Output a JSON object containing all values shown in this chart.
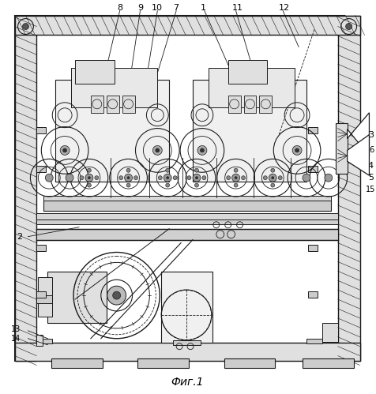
{
  "title": "Фиг.1",
  "bg_color": "#ffffff",
  "line_color": "#1a1a1a",
  "fig_width": 4.76,
  "fig_height": 4.99,
  "dpi": 100
}
